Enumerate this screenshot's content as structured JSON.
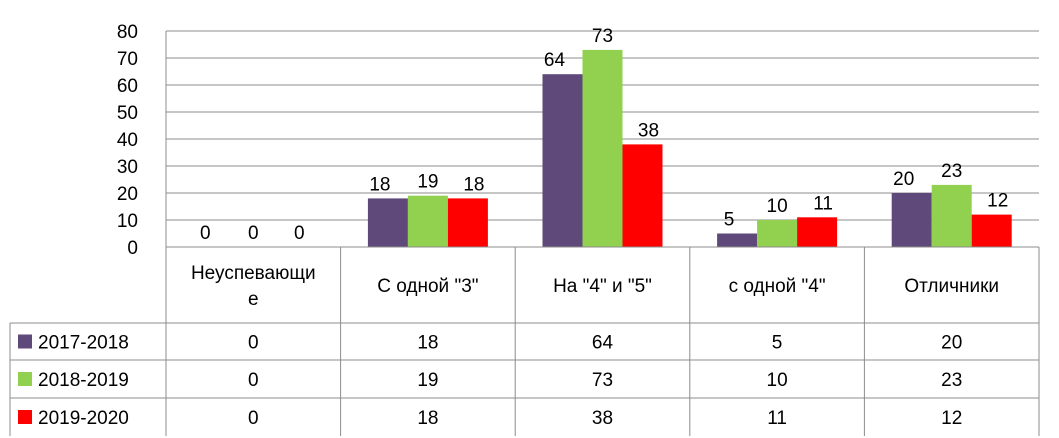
{
  "chart_data": {
    "type": "bar",
    "categories": [
      "Неуспевающие",
      "С одной \"3\"",
      "На \"4\" и \"5\"",
      "с одной \"4\"",
      "Отличники"
    ],
    "category_display": [
      [
        "Неуспевающи",
        "е"
      ],
      [
        "С одной \"3\""
      ],
      [
        "На \"4\" и \"5\""
      ],
      [
        "с одной \"4\""
      ],
      [
        "Отличники"
      ]
    ],
    "series": [
      {
        "name": "2017-2018",
        "color": "#5f497a",
        "values": [
          0,
          18,
          64,
          5,
          20
        ]
      },
      {
        "name": "2018-2019",
        "color": "#92d050",
        "values": [
          0,
          19,
          73,
          10,
          23
        ]
      },
      {
        "name": "2019-2020",
        "color": "#ff0000",
        "values": [
          0,
          18,
          38,
          11,
          12
        ]
      }
    ],
    "ylim": [
      0,
      80
    ],
    "yticks": [
      0,
      10,
      20,
      30,
      40,
      50,
      60,
      70,
      80
    ],
    "grid": true,
    "legend": "data-table-left",
    "data_labels": true
  }
}
